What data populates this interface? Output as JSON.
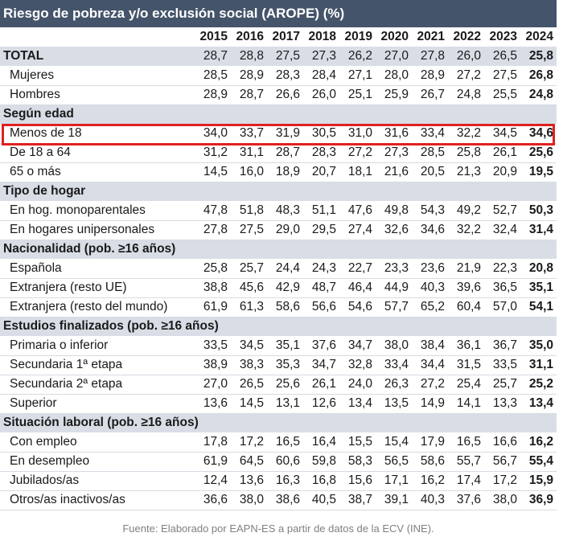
{
  "title": "Riesgo de pobreza y/o exclusión social (AROPE) (%)",
  "years": [
    "2015",
    "2016",
    "2017",
    "2018",
    "2019",
    "2020",
    "2021",
    "2022",
    "2023",
    "2024"
  ],
  "rows": [
    {
      "type": "total",
      "label": "TOTAL",
      "values": [
        "28,7",
        "28,8",
        "27,5",
        "27,3",
        "26,2",
        "27,0",
        "27,8",
        "26,0",
        "26,5",
        "25,8"
      ]
    },
    {
      "type": "row",
      "label": "Mujeres",
      "values": [
        "28,5",
        "28,9",
        "28,3",
        "28,4",
        "27,1",
        "28,0",
        "28,9",
        "27,2",
        "27,5",
        "26,8"
      ]
    },
    {
      "type": "row",
      "label": "Hombres",
      "values": [
        "28,9",
        "28,7",
        "26,6",
        "26,0",
        "25,1",
        "25,9",
        "26,7",
        "24,8",
        "25,5",
        "24,8"
      ]
    },
    {
      "type": "section",
      "label": "Según edad"
    },
    {
      "type": "row",
      "label": "Menos de 18",
      "highlight": true,
      "values": [
        "34,0",
        "33,7",
        "31,9",
        "30,5",
        "31,0",
        "31,6",
        "33,4",
        "32,2",
        "34,5",
        "34,6"
      ]
    },
    {
      "type": "row",
      "label": "De 18 a 64",
      "values": [
        "31,2",
        "31,1",
        "28,7",
        "28,3",
        "27,2",
        "27,3",
        "28,5",
        "25,8",
        "26,1",
        "25,6"
      ]
    },
    {
      "type": "row",
      "label": "65 o más",
      "values": [
        "14,5",
        "16,0",
        "18,9",
        "20,7",
        "18,1",
        "21,6",
        "20,5",
        "21,3",
        "20,9",
        "19,5"
      ]
    },
    {
      "type": "section",
      "label": "Tipo de hogar"
    },
    {
      "type": "row",
      "label": "En hog. monoparentales",
      "values": [
        "47,8",
        "51,8",
        "48,3",
        "51,1",
        "47,6",
        "49,8",
        "54,3",
        "49,2",
        "52,7",
        "50,3"
      ]
    },
    {
      "type": "row",
      "label": "En hogares unipersonales",
      "values": [
        "27,8",
        "27,5",
        "29,0",
        "29,5",
        "27,4",
        "32,6",
        "34,6",
        "32,2",
        "32,4",
        "31,4"
      ]
    },
    {
      "type": "section",
      "label": "Nacionalidad (pob. ≥16 años)"
    },
    {
      "type": "row",
      "label": "Española",
      "values": [
        "25,8",
        "25,7",
        "24,4",
        "24,3",
        "22,7",
        "23,3",
        "23,6",
        "21,9",
        "22,3",
        "20,8"
      ]
    },
    {
      "type": "row",
      "label": "Extranjera (resto UE)",
      "values": [
        "38,8",
        "45,6",
        "42,9",
        "48,7",
        "46,4",
        "44,9",
        "40,3",
        "39,6",
        "36,5",
        "35,1"
      ]
    },
    {
      "type": "row",
      "label": "Extranjera (resto del mundo)",
      "values": [
        "61,9",
        "61,3",
        "58,6",
        "56,6",
        "54,6",
        "57,7",
        "65,2",
        "60,4",
        "57,0",
        "54,1"
      ]
    },
    {
      "type": "section",
      "label": "Estudios finalizados  (pob. ≥16 años)"
    },
    {
      "type": "row",
      "label": "Primaria o inferior",
      "values": [
        "33,5",
        "34,5",
        "35,1",
        "37,6",
        "34,7",
        "38,0",
        "38,4",
        "36,1",
        "36,7",
        "35,0"
      ]
    },
    {
      "type": "row",
      "label": "Secundaria 1ª etapa",
      "values": [
        "38,9",
        "38,3",
        "35,3",
        "34,7",
        "32,8",
        "33,4",
        "34,4",
        "31,5",
        "33,5",
        "31,1"
      ]
    },
    {
      "type": "row",
      "label": "Secundaria 2ª etapa",
      "values": [
        "27,0",
        "26,5",
        "25,6",
        "26,1",
        "24,0",
        "26,3",
        "27,2",
        "25,4",
        "25,7",
        "25,2"
      ]
    },
    {
      "type": "row",
      "label": "Superior",
      "values": [
        "13,6",
        "14,5",
        "13,1",
        "12,6",
        "13,4",
        "13,5",
        "14,9",
        "14,1",
        "13,3",
        "13,4"
      ]
    },
    {
      "type": "section",
      "label": "Situación laboral (pob. ≥16 años)"
    },
    {
      "type": "row",
      "label": "Con empleo",
      "values": [
        "17,8",
        "17,2",
        "16,5",
        "16,4",
        "15,5",
        "15,4",
        "17,9",
        "16,5",
        "16,6",
        "16,2"
      ]
    },
    {
      "type": "row",
      "label": "En desempleo",
      "values": [
        "61,9",
        "64,5",
        "60,6",
        "59,8",
        "58,3",
        "56,5",
        "58,6",
        "55,7",
        "56,7",
        "55,4"
      ]
    },
    {
      "type": "row",
      "label": "Jubilados/as",
      "values": [
        "12,4",
        "13,6",
        "16,3",
        "16,8",
        "15,6",
        "17,1",
        "16,2",
        "17,4",
        "17,2",
        "15,9"
      ]
    },
    {
      "type": "row",
      "label": "Otros/as inactivos/as",
      "values": [
        "36,6",
        "38,0",
        "38,6",
        "40,5",
        "38,7",
        "39,1",
        "40,3",
        "37,6",
        "38,0",
        "36,9"
      ]
    }
  ],
  "source": "Fuente: Elaborado por EAPN-ES a partir de datos de la ECV (INE)."
}
